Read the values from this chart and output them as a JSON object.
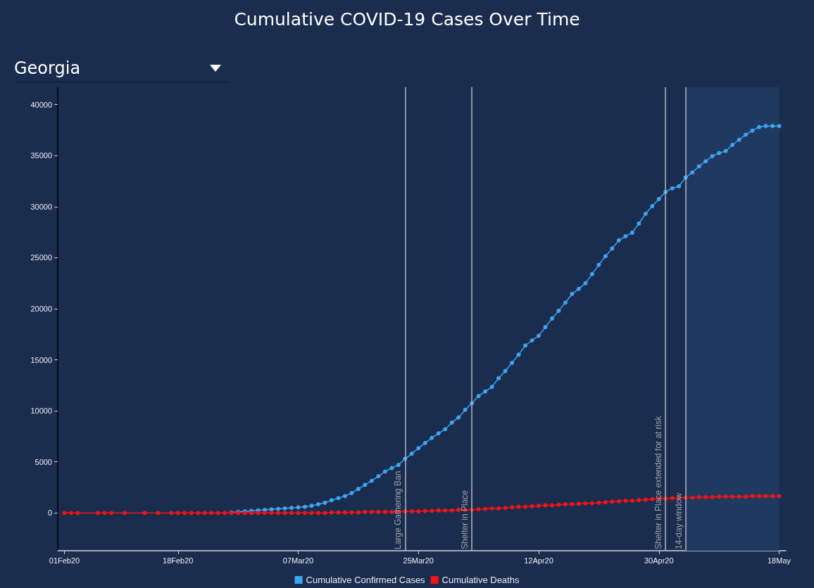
{
  "chart_data": {
    "type": "line",
    "title": "Cumulative COVID-19 Cases Over Time",
    "subtitle": "Georgia",
    "x": [
      "2020-02-01",
      "2020-02-02",
      "2020-02-03",
      "2020-02-06",
      "2020-02-07",
      "2020-02-08",
      "2020-02-10",
      "2020-02-13",
      "2020-02-15",
      "2020-02-17",
      "2020-02-18",
      "2020-02-19",
      "2020-02-20",
      "2020-02-21",
      "2020-02-22",
      "2020-02-23",
      "2020-02-24",
      "2020-02-25",
      "2020-02-26",
      "2020-02-27",
      "2020-02-28",
      "2020-02-29",
      "2020-03-01",
      "2020-03-02",
      "2020-03-03",
      "2020-03-04",
      "2020-03-05",
      "2020-03-06",
      "2020-03-07",
      "2020-03-08",
      "2020-03-09",
      "2020-03-10",
      "2020-03-11",
      "2020-03-12",
      "2020-03-13",
      "2020-03-14",
      "2020-03-15",
      "2020-03-16",
      "2020-03-17",
      "2020-03-18",
      "2020-03-19",
      "2020-03-20",
      "2020-03-21",
      "2020-03-22",
      "2020-03-23",
      "2020-03-24",
      "2020-03-25",
      "2020-03-26",
      "2020-03-27",
      "2020-03-28",
      "2020-03-29",
      "2020-03-30",
      "2020-03-31",
      "2020-04-01",
      "2020-04-02",
      "2020-04-03",
      "2020-04-04",
      "2020-04-05",
      "2020-04-06",
      "2020-04-07",
      "2020-04-08",
      "2020-04-09",
      "2020-04-10",
      "2020-04-11",
      "2020-04-12",
      "2020-04-13",
      "2020-04-14",
      "2020-04-15",
      "2020-04-16",
      "2020-04-17",
      "2020-04-18",
      "2020-04-19",
      "2020-04-20",
      "2020-04-21",
      "2020-04-22",
      "2020-04-23",
      "2020-04-24",
      "2020-04-25",
      "2020-04-26",
      "2020-04-27",
      "2020-04-28",
      "2020-04-29",
      "2020-04-30",
      "2020-05-01",
      "2020-05-02",
      "2020-05-03",
      "2020-05-04",
      "2020-05-05",
      "2020-05-06",
      "2020-05-07",
      "2020-05-08",
      "2020-05-09",
      "2020-05-10",
      "2020-05-11",
      "2020-05-12",
      "2020-05-13",
      "2020-05-14",
      "2020-05-15",
      "2020-05-16",
      "2020-05-17",
      "2020-05-18"
    ],
    "series": [
      {
        "name": "Cumulative Confirmed Cases",
        "color": "#3ea3f0",
        "values": [
          null,
          null,
          null,
          null,
          null,
          null,
          null,
          null,
          null,
          null,
          null,
          null,
          null,
          null,
          null,
          null,
          null,
          null,
          50,
          100,
          150,
          200,
          250,
          300,
          350,
          400,
          450,
          500,
          550,
          600,
          700,
          850,
          1000,
          1250,
          1450,
          1650,
          1950,
          2350,
          2750,
          3150,
          3600,
          4050,
          4400,
          4700,
          5300,
          5800,
          6350,
          6850,
          7350,
          7800,
          8200,
          8850,
          9350,
          10100,
          10750,
          11450,
          11900,
          12350,
          13200,
          13900,
          14700,
          15500,
          16400,
          16900,
          17350,
          18200,
          19050,
          19800,
          20600,
          21450,
          21950,
          22500,
          23400,
          24300,
          25150,
          25900,
          26700,
          27100,
          27450,
          28350,
          29300,
          30050,
          30750,
          31450,
          31800,
          32000,
          32850,
          33350,
          33950,
          34450,
          34950,
          35250,
          35450,
          36050,
          36550,
          37050,
          37450,
          37800,
          37900,
          37900,
          37900
        ]
      },
      {
        "name": "Cumulative Deaths",
        "color": "#f01414",
        "values": [
          0,
          0,
          0,
          0,
          0,
          0,
          0,
          0,
          0,
          0,
          0,
          0,
          0,
          0,
          0,
          0,
          0,
          0,
          0,
          0,
          0,
          0,
          0,
          0,
          0,
          0,
          0,
          0,
          0,
          0,
          0,
          0,
          0,
          50,
          50,
          50,
          50,
          50,
          100,
          100,
          100,
          100,
          100,
          100,
          150,
          150,
          150,
          200,
          200,
          250,
          250,
          250,
          300,
          300,
          300,
          350,
          400,
          450,
          450,
          500,
          550,
          600,
          600,
          650,
          700,
          750,
          750,
          800,
          850,
          850,
          900,
          950,
          950,
          1000,
          1050,
          1100,
          1150,
          1200,
          1200,
          1250,
          1300,
          1350,
          1400,
          1400,
          1450,
          1450,
          1500,
          1500,
          1550,
          1550,
          1550,
          1600,
          1600,
          1600,
          1600,
          1600,
          1650,
          1650,
          1650,
          1650,
          1650
        ]
      }
    ],
    "xlim": [
      "2020-01-31",
      "2020-05-19"
    ],
    "xticks": [
      {
        "value": "2020-02-01",
        "label": "01Feb20"
      },
      {
        "value": "2020-02-18",
        "label": "18Feb20"
      },
      {
        "value": "2020-03-07",
        "label": "07Mar20"
      },
      {
        "value": "2020-03-25",
        "label": "25Mar20"
      },
      {
        "value": "2020-04-12",
        "label": "12Apr20"
      },
      {
        "value": "2020-04-30",
        "label": "30Apr20"
      },
      {
        "value": "2020-05-18",
        "label": "18May"
      }
    ],
    "ylim": [
      -3700,
      41700
    ],
    "yticks": [
      0,
      5000,
      10000,
      15000,
      20000,
      25000,
      30000,
      35000,
      40000
    ],
    "ref_lines": [
      {
        "axis": "x",
        "value": "2020-03-23",
        "label": "Large Gathering Ban",
        "color": "#b4b8c0"
      },
      {
        "axis": "x",
        "value": "2020-04-02",
        "label": "Shelter in Place",
        "color": "#b4b8c0"
      },
      {
        "axis": "x",
        "value": "2020-05-01",
        "label": "Shelter in Place extended for at risk",
        "color": "#b4b8c0"
      },
      {
        "axis": "x",
        "value": "2020-05-04",
        "label": "14-day window",
        "color": "#b4b8c0"
      }
    ],
    "bands": [
      {
        "axis": "x",
        "from": "2020-05-04",
        "to": "2020-05-18",
        "color": "#1f3960"
      }
    ],
    "grid": false,
    "legend": "bottom",
    "marker": "circle",
    "line_style": "solid"
  }
}
